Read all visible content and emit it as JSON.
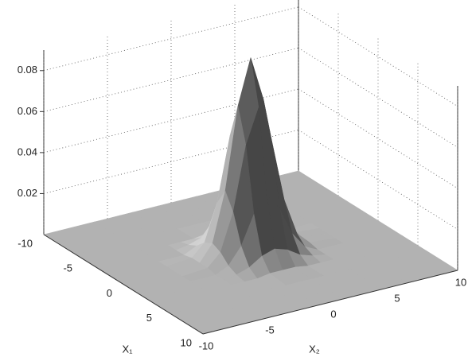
{
  "chart_data": {
    "type": "surface",
    "xlabel": "X₁",
    "ylabel": "X₂",
    "x": [
      -10,
      -6,
      -4,
      -3,
      -2,
      -1,
      0,
      1,
      2,
      3,
      4,
      6,
      10
    ],
    "y": [
      -10,
      -6,
      -4,
      -3,
      -2,
      -1,
      0,
      1,
      2,
      3,
      4,
      6,
      10
    ],
    "z": [
      [
        0,
        0,
        0,
        0,
        0,
        0,
        0,
        0,
        0,
        0,
        0,
        0,
        0
      ],
      [
        0,
        0,
        0,
        0,
        0,
        0,
        0,
        0,
        0,
        0,
        0,
        0,
        0
      ],
      [
        0,
        0,
        0,
        0,
        0,
        0.001,
        0.001,
        0.001,
        0,
        0,
        0,
        0,
        0
      ],
      [
        0,
        0,
        0,
        0.001,
        0.003,
        0.007,
        0.009,
        0.007,
        0.003,
        0.001,
        0,
        0,
        0
      ],
      [
        0,
        0,
        0,
        0.003,
        0.011,
        0.025,
        0.033,
        0.025,
        0.011,
        0.003,
        0,
        0,
        0
      ],
      [
        0,
        0,
        0.001,
        0.007,
        0.025,
        0.056,
        0.073,
        0.056,
        0.025,
        0.007,
        0.001,
        0,
        0
      ],
      [
        0,
        0,
        0.001,
        0.009,
        0.033,
        0.073,
        0.095,
        0.073,
        0.033,
        0.009,
        0.001,
        0,
        0
      ],
      [
        0,
        0,
        0.001,
        0.007,
        0.025,
        0.056,
        0.073,
        0.056,
        0.025,
        0.007,
        0.001,
        0,
        0
      ],
      [
        0,
        0,
        0,
        0.003,
        0.011,
        0.025,
        0.033,
        0.025,
        0.011,
        0.003,
        0,
        0,
        0
      ],
      [
        0,
        0,
        0,
        0.001,
        0.003,
        0.007,
        0.009,
        0.007,
        0.003,
        0.001,
        0,
        0,
        0
      ],
      [
        0,
        0,
        0,
        0,
        0,
        0.001,
        0.001,
        0.001,
        0,
        0,
        0,
        0,
        0
      ],
      [
        0,
        0,
        0,
        0,
        0,
        0,
        0,
        0,
        0,
        0,
        0,
        0,
        0
      ],
      [
        0,
        0,
        0,
        0,
        0,
        0,
        0,
        0,
        0,
        0,
        0,
        0,
        0
      ]
    ],
    "xlim": [
      -10,
      10
    ],
    "ylim": [
      -10,
      10
    ],
    "zlim": [
      0,
      0.09
    ],
    "xticks": [
      -10,
      -5,
      0,
      5,
      10
    ],
    "yticks": [
      -10,
      -5,
      0,
      5,
      10
    ],
    "zticks": [
      0.02,
      0.04,
      0.06,
      0.08
    ],
    "grid": true
  }
}
